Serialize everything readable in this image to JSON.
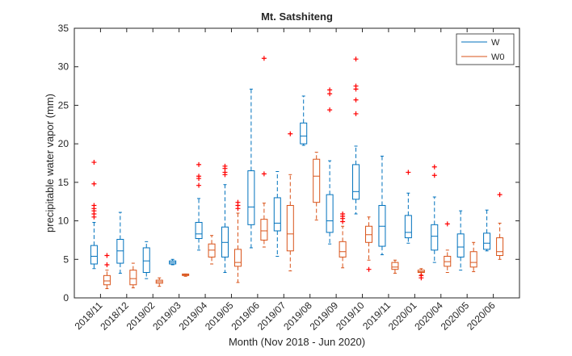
{
  "chart_data": {
    "type": "boxplot",
    "title": "Mt. Satshiteng",
    "xlabel": "Month (Nov 2018 - Jun 2020)",
    "ylabel": "precipitable water vapor (mm)",
    "ylim": [
      0,
      35
    ],
    "yticks": [
      0,
      5,
      10,
      15,
      20,
      25,
      30,
      35
    ],
    "grid": false,
    "legend_position": "top-right",
    "categories": [
      "2018/11",
      "2018/12",
      "2019/02",
      "2019/03",
      "2019/04",
      "2019/05",
      "2019/06",
      "2019/07",
      "2019/08",
      "2019/09",
      "2019/10",
      "2019/11",
      "2020/01",
      "2020/04",
      "2020/05",
      "2020/06"
    ],
    "series": [
      {
        "name": "W",
        "color": "#0072BD",
        "boxes": [
          {
            "low": 3.8,
            "q1": 4.4,
            "median": 5.4,
            "q3": 6.8,
            "high": 9.8,
            "outliers": [
              10.5,
              10.9,
              11.3,
              11.6,
              12.0,
              14.8,
              17.6
            ]
          },
          {
            "low": 3.2,
            "q1": 4.5,
            "median": 6.1,
            "q3": 7.6,
            "high": 11.1,
            "outliers": []
          },
          {
            "low": 2.5,
            "q1": 3.3,
            "median": 4.8,
            "q3": 6.5,
            "high": 7.3,
            "outliers": []
          },
          {
            "low": 4.3,
            "q1": 4.4,
            "median": 4.6,
            "q3": 4.8,
            "high": 5.0,
            "outliers": []
          },
          {
            "low": 6.2,
            "q1": 7.7,
            "median": 8.3,
            "q3": 9.8,
            "high": 12.9,
            "outliers": [
              14.6,
              15.5,
              15.8,
              17.3
            ]
          },
          {
            "low": 3.3,
            "q1": 5.3,
            "median": 7.2,
            "q3": 9.2,
            "high": 14.7,
            "outliers": [
              16.0,
              16.3,
              16.8,
              17.1
            ]
          },
          {
            "low": 6.5,
            "q1": 9.5,
            "median": 11.8,
            "q3": 16.5,
            "high": 27.1,
            "outliers": []
          },
          {
            "low": 5.4,
            "q1": 8.7,
            "median": 9.7,
            "q3": 13.0,
            "high": 16.4,
            "outliers": []
          },
          {
            "low": 19.8,
            "q1": 20.0,
            "median": 21.0,
            "q3": 22.7,
            "high": 26.2,
            "outliers": []
          },
          {
            "low": 7.0,
            "q1": 8.5,
            "median": 10.0,
            "q3": 13.4,
            "high": 17.8,
            "outliers": [
              24.4,
              26.5,
              27.0
            ]
          },
          {
            "low": 10.9,
            "q1": 12.8,
            "median": 13.8,
            "q3": 17.3,
            "high": 19.7,
            "outliers": [
              23.9,
              25.7,
              27.1,
              27.5,
              31.0
            ]
          },
          {
            "low": 5.6,
            "q1": 6.7,
            "median": 9.3,
            "q3": 12.0,
            "high": 18.4,
            "outliers": []
          },
          {
            "low": 7.1,
            "q1": 7.8,
            "median": 8.5,
            "q3": 10.7,
            "high": 13.6,
            "outliers": [
              16.3
            ]
          },
          {
            "low": 4.6,
            "q1": 6.2,
            "median": 8.0,
            "q3": 9.5,
            "high": 13.1,
            "outliers": [
              15.9,
              17.0
            ]
          },
          {
            "low": 3.6,
            "q1": 5.3,
            "median": 6.6,
            "q3": 8.3,
            "high": 11.3,
            "outliers": []
          },
          {
            "low": 6.1,
            "q1": 6.3,
            "median": 7.1,
            "q3": 8.4,
            "high": 11.4,
            "outliers": []
          }
        ]
      },
      {
        "name": "W0",
        "color": "#D95319",
        "boxes": [
          {
            "low": 1.2,
            "q1": 1.7,
            "median": 2.2,
            "q3": 2.9,
            "high": 3.6,
            "outliers": [
              4.3,
              5.5
            ]
          },
          {
            "low": 1.3,
            "q1": 1.7,
            "median": 2.5,
            "q3": 3.6,
            "high": 4.5,
            "outliers": []
          },
          {
            "low": 1.5,
            "q1": 1.9,
            "median": 2.1,
            "q3": 2.3,
            "high": 2.6,
            "outliers": []
          },
          {
            "low": 2.8,
            "q1": 2.9,
            "median": 3.0,
            "q3": 3.1,
            "high": 3.1,
            "outliers": []
          },
          {
            "low": 4.4,
            "q1": 5.3,
            "median": 6.2,
            "q3": 7.0,
            "high": 8.1,
            "outliers": []
          },
          {
            "low": 2.0,
            "q1": 4.1,
            "median": 4.6,
            "q3": 6.3,
            "high": 11.0,
            "outliers": [
              11.6,
              12.0,
              12.4
            ]
          },
          {
            "low": 6.6,
            "q1": 7.5,
            "median": 8.7,
            "q3": 10.2,
            "high": 12.3,
            "outliers": [
              16.1,
              31.1
            ]
          },
          {
            "low": 3.5,
            "q1": 6.1,
            "median": 8.3,
            "q3": 12.0,
            "high": 16.0,
            "outliers": [
              21.3
            ]
          },
          {
            "low": 10.1,
            "q1": 12.4,
            "median": 15.8,
            "q3": 18.0,
            "high": 18.9,
            "outliers": []
          },
          {
            "low": 3.9,
            "q1": 5.3,
            "median": 6.0,
            "q3": 7.3,
            "high": 9.3,
            "outliers": [
              9.9,
              10.3,
              10.6,
              10.9
            ]
          },
          {
            "low": 4.9,
            "q1": 7.2,
            "median": 8.2,
            "q3": 9.3,
            "high": 10.5,
            "outliers": [
              3.7
            ]
          },
          {
            "low": 3.2,
            "q1": 3.7,
            "median": 4.0,
            "q3": 4.6,
            "high": 4.9,
            "outliers": []
          },
          {
            "low": 3.0,
            "q1": 3.3,
            "median": 3.4,
            "q3": 3.6,
            "high": 3.8,
            "outliers": [
              2.6,
              2.9
            ]
          },
          {
            "low": 3.3,
            "q1": 4.1,
            "median": 4.7,
            "q3": 5.4,
            "high": 6.2,
            "outliers": [
              9.6
            ]
          },
          {
            "low": 3.4,
            "q1": 4.0,
            "median": 4.6,
            "q3": 6.0,
            "high": 7.2,
            "outliers": []
          },
          {
            "low": 5.0,
            "q1": 5.5,
            "median": 6.0,
            "q3": 7.8,
            "high": 9.7,
            "outliers": [
              13.4
            ]
          }
        ]
      }
    ]
  }
}
